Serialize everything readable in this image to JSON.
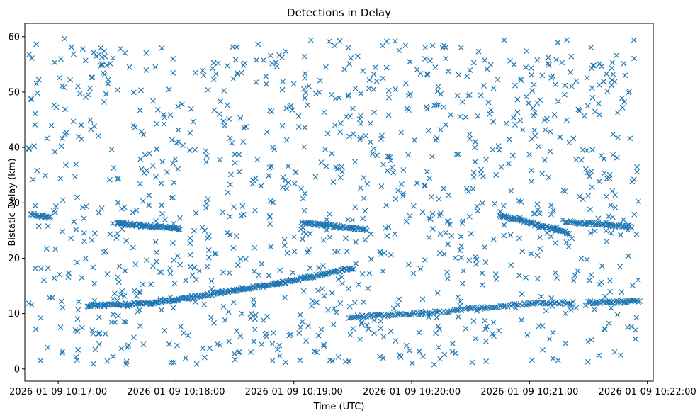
{
  "chart_data": {
    "type": "scatter",
    "title": "Detections in Delay",
    "xlabel": "Time (UTC)",
    "ylabel": "Bistatic Delay (km)",
    "marker": "x",
    "color": "#1f77b4",
    "grid": false,
    "x_unit": "seconds after 2026-01-09 10:17:00 UTC",
    "xlim": [
      -17,
      303
    ],
    "ylim": [
      -2.2,
      62.4
    ],
    "x_ticks": [
      {
        "value": 0,
        "label": "2026-01-09 10:17:00"
      },
      {
        "value": 60,
        "label": "2026-01-09 10:18:00"
      },
      {
        "value": 120,
        "label": "2026-01-09 10:19:00"
      },
      {
        "value": 180,
        "label": "2026-01-09 10:20:00"
      },
      {
        "value": 240,
        "label": "2026-01-09 10:21:00"
      },
      {
        "value": 300,
        "label": "2026-01-09 10:22:00"
      }
    ],
    "y_ticks": [
      {
        "value": 0,
        "label": "0"
      },
      {
        "value": 10,
        "label": "10"
      },
      {
        "value": 20,
        "label": "20"
      },
      {
        "value": 30,
        "label": "30"
      },
      {
        "value": 40,
        "label": "40"
      },
      {
        "value": 50,
        "label": "50"
      },
      {
        "value": 60,
        "label": "60"
      }
    ],
    "time_range": [
      -15,
      296
    ],
    "clutter_count": 1150,
    "tracks": [
      {
        "name": "track-1",
        "t_start": -14,
        "t_end": -4,
        "delay_start": 27.9,
        "delay_end": 27.4,
        "points": 22
      },
      {
        "name": "track-2",
        "t_start": 15,
        "t_end": 48,
        "delay_start": 11.4,
        "delay_end": 11.9,
        "points": 60
      },
      {
        "name": "track-3",
        "t_start": 48,
        "t_end": 110,
        "delay_start": 11.9,
        "delay_end": 15.3,
        "points": 110
      },
      {
        "name": "track-4",
        "t_start": 110,
        "t_end": 150,
        "delay_start": 15.3,
        "delay_end": 18.2,
        "points": 70
      },
      {
        "name": "track-5",
        "t_start": 30,
        "t_end": 62,
        "delay_start": 26.3,
        "delay_end": 25.3,
        "points": 70
      },
      {
        "name": "track-6",
        "t_start": 124,
        "t_end": 157,
        "delay_start": 26.4,
        "delay_end": 25.2,
        "points": 70
      },
      {
        "name": "track-7",
        "t_start": 148,
        "t_end": 185,
        "delay_start": 9.4,
        "delay_end": 10.0,
        "points": 45
      },
      {
        "name": "track-8",
        "t_start": 185,
        "t_end": 240,
        "delay_start": 10.0,
        "delay_end": 11.8,
        "points": 60
      },
      {
        "name": "track-9",
        "t_start": 240,
        "t_end": 262,
        "delay_start": 11.8,
        "delay_end": 12.0,
        "points": 25
      },
      {
        "name": "track-10",
        "t_start": 270,
        "t_end": 296,
        "delay_start": 12.0,
        "delay_end": 12.2,
        "points": 40
      },
      {
        "name": "track-11",
        "t_start": 225,
        "t_end": 260,
        "delay_start": 27.8,
        "delay_end": 24.5,
        "points": 70
      },
      {
        "name": "track-12",
        "t_start": 258,
        "t_end": 292,
        "delay_start": 26.6,
        "delay_end": 25.7,
        "points": 55
      }
    ]
  }
}
